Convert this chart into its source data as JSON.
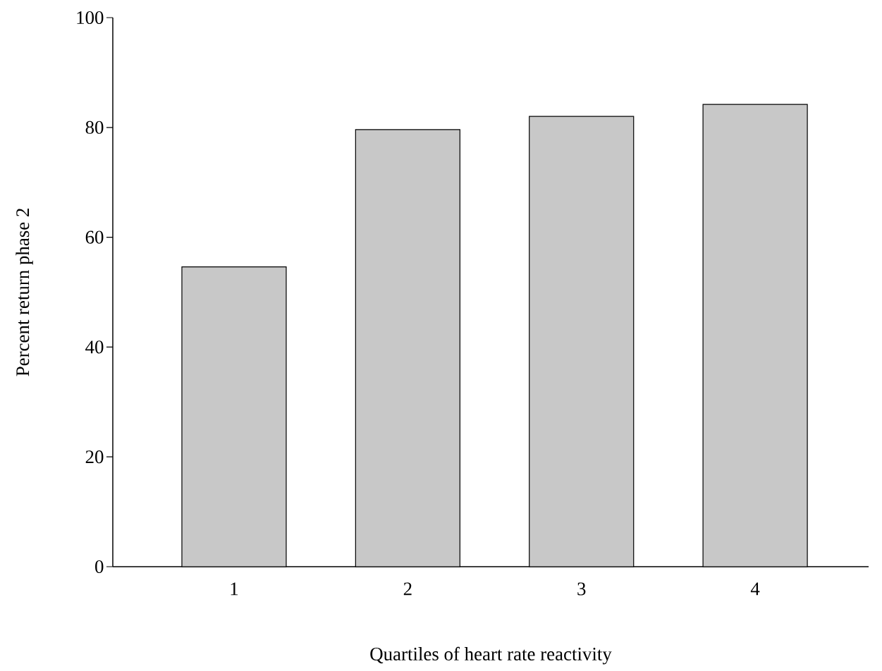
{
  "chart_data": {
    "type": "bar",
    "xlabel": "Quartiles of heart rate reactivity",
    "ylabel": "Percent return phase 2",
    "categories": [
      "1",
      "2",
      "3",
      "4"
    ],
    "values": [
      54.6,
      79.6,
      82.0,
      84.2
    ],
    "color": "#c8c8c8",
    "ylim": [
      0,
      100
    ],
    "yticks": [
      0,
      20,
      40,
      60,
      80,
      100
    ]
  }
}
